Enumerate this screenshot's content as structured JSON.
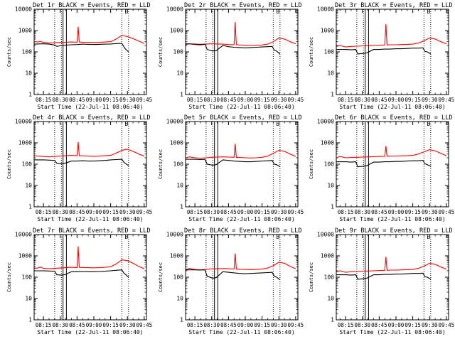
{
  "chart_data": {
    "type": "line",
    "shared": {
      "xlabel": "Start Time (22-Jul-11 08:06:40)",
      "ylabel": "Counts/sec",
      "x_ticks": [
        "08:15",
        "08:30",
        "08:45",
        "09:00",
        "09:15",
        "09:30",
        "09:45"
      ],
      "x_tick_minutes": [
        15,
        30,
        45,
        60,
        75,
        90,
        105
      ],
      "xlim_minutes": [
        6.67,
        107
      ],
      "y_scale": "log",
      "ylim": [
        1,
        10000
      ],
      "y_ticks": [
        "1",
        "10",
        "100",
        "1000",
        "10000"
      ],
      "y_tick_values": [
        1,
        10,
        100,
        1000,
        10000
      ],
      "dotted_vlines_minutes": [
        25,
        31,
        85,
        91
      ],
      "box_minutes": [
        32.5,
        35.5
      ],
      "corner_marker": "E",
      "corner_marker_minute": 89,
      "series_colors": {
        "events": "#000000",
        "lld": "#ff0000"
      }
    },
    "panels": [
      {
        "title": "Det 1r  BLACK = Events, RED = LLD",
        "events": {
          "x": [
            7,
            15,
            20,
            25,
            27,
            31,
            34,
            40,
            45,
            50,
            55,
            60,
            65,
            70,
            75,
            80,
            85,
            87,
            88,
            91
          ],
          "y": [
            230,
            240,
            230,
            210,
            180,
            200,
            205,
            215,
            220,
            230,
            225,
            220,
            225,
            230,
            235,
            245,
            250,
            170,
            140,
            100
          ]
        },
        "lld": {
          "x": [
            7,
            10,
            12,
            15,
            20,
            25,
            30,
            35,
            40,
            45,
            46,
            47,
            50,
            55,
            60,
            65,
            70,
            75,
            80,
            85,
            90,
            95,
            100,
            105
          ],
          "y": [
            300,
            290,
            310,
            280,
            260,
            270,
            275,
            285,
            290,
            285,
            1500,
            290,
            285,
            280,
            275,
            280,
            290,
            300,
            400,
            600,
            520,
            420,
            320,
            250
          ]
        }
      },
      {
        "title": "Det 2r  BLACK = Events, RED = LLD",
        "events": {
          "x": [
            7,
            15,
            20,
            24,
            26,
            31,
            34,
            40,
            45,
            50,
            55,
            60,
            65,
            70,
            75,
            80,
            84,
            86,
            88,
            91
          ],
          "y": [
            240,
            230,
            225,
            230,
            130,
            110,
            115,
            200,
            175,
            165,
            160,
            155,
            160,
            165,
            170,
            175,
            180,
            120,
            110,
            80
          ]
        },
        "lld": {
          "x": [
            7,
            10,
            15,
            20,
            25,
            30,
            35,
            40,
            45,
            50,
            51,
            52,
            55,
            60,
            65,
            70,
            75,
            80,
            85,
            90,
            95,
            100,
            105
          ],
          "y": [
            220,
            240,
            220,
            210,
            230,
            240,
            235,
            230,
            220,
            215,
            2500,
            215,
            210,
            205,
            200,
            205,
            210,
            230,
            300,
            450,
            400,
            300,
            240
          ]
        }
      },
      {
        "title": "Det 3r  BLACK = Events, RED = LLD",
        "events": {
          "x": [
            7,
            15,
            20,
            24,
            26,
            31,
            34,
            40,
            45,
            50,
            55,
            60,
            65,
            70,
            75,
            80,
            84,
            86,
            88,
            91
          ],
          "y": [
            130,
            130,
            125,
            130,
            80,
            85,
            90,
            130,
            130,
            135,
            135,
            140,
            140,
            145,
            150,
            150,
            155,
            105,
            100,
            80
          ]
        },
        "lld": {
          "x": [
            7,
            10,
            15,
            20,
            25,
            30,
            35,
            40,
            45,
            50,
            51,
            52,
            55,
            60,
            65,
            70,
            75,
            80,
            85,
            90,
            95,
            100,
            105
          ],
          "y": [
            180,
            200,
            170,
            180,
            185,
            190,
            195,
            200,
            205,
            210,
            2000,
            210,
            215,
            215,
            220,
            225,
            230,
            260,
            330,
            450,
            400,
            300,
            240
          ]
        }
      },
      {
        "title": "Det 4r  BLACK = Events, RED = LLD",
        "events": {
          "x": [
            7,
            15,
            20,
            25,
            27,
            31,
            34,
            40,
            45,
            50,
            55,
            60,
            65,
            70,
            75,
            80,
            85,
            87,
            88,
            91
          ],
          "y": [
            160,
            160,
            155,
            150,
            110,
            105,
            110,
            140,
            140,
            145,
            140,
            140,
            145,
            150,
            160,
            165,
            170,
            120,
            110,
            85
          ]
        },
        "lld": {
          "x": [
            7,
            10,
            15,
            20,
            25,
            30,
            35,
            40,
            45,
            46,
            47,
            50,
            55,
            60,
            65,
            70,
            75,
            80,
            85,
            90,
            95,
            100,
            105
          ],
          "y": [
            250,
            240,
            230,
            220,
            230,
            240,
            250,
            260,
            250,
            1100,
            250,
            245,
            240,
            235,
            240,
            250,
            260,
            330,
            450,
            500,
            400,
            300,
            240
          ]
        }
      },
      {
        "title": "Det 5r  BLACK = Events, RED = LLD",
        "events": {
          "x": [
            7,
            15,
            20,
            24,
            26,
            31,
            34,
            40,
            45,
            50,
            55,
            60,
            65,
            70,
            75,
            80,
            84,
            86,
            88,
            91
          ],
          "y": [
            170,
            170,
            165,
            170,
            100,
            90,
            95,
            160,
            150,
            140,
            135,
            130,
            130,
            135,
            140,
            145,
            150,
            100,
            95,
            75
          ]
        },
        "lld": {
          "x": [
            7,
            10,
            15,
            20,
            25,
            30,
            35,
            40,
            45,
            50,
            51,
            52,
            55,
            60,
            65,
            70,
            75,
            80,
            85,
            90,
            95,
            100,
            105
          ],
          "y": [
            200,
            220,
            200,
            190,
            200,
            210,
            215,
            220,
            215,
            210,
            900,
            210,
            205,
            200,
            195,
            200,
            210,
            240,
            320,
            450,
            400,
            300,
            230
          ]
        }
      },
      {
        "title": "Det 6r  BLACK = Events, RED = LLD",
        "events": {
          "x": [
            7,
            15,
            20,
            24,
            26,
            31,
            34,
            40,
            45,
            50,
            55,
            60,
            65,
            70,
            75,
            80,
            84,
            86,
            88,
            91
          ],
          "y": [
            130,
            130,
            125,
            130,
            75,
            80,
            85,
            125,
            125,
            130,
            130,
            135,
            135,
            140,
            145,
            145,
            150,
            105,
            95,
            80
          ]
        },
        "lld": {
          "x": [
            7,
            10,
            15,
            20,
            25,
            30,
            35,
            40,
            45,
            50,
            51,
            52,
            55,
            60,
            65,
            70,
            75,
            80,
            85,
            90,
            95,
            100,
            105
          ],
          "y": [
            200,
            230,
            200,
            205,
            210,
            215,
            220,
            225,
            230,
            235,
            700,
            235,
            240,
            240,
            245,
            250,
            260,
            300,
            380,
            480,
            420,
            320,
            250
          ]
        }
      },
      {
        "title": "Det 7r  BLACK = Events, RED = LLD",
        "events": {
          "x": [
            7,
            15,
            20,
            25,
            27,
            31,
            34,
            40,
            45,
            50,
            55,
            60,
            65,
            70,
            75,
            80,
            85,
            87,
            88,
            91
          ],
          "y": [
            200,
            200,
            195,
            190,
            130,
            125,
            130,
            180,
            180,
            185,
            180,
            180,
            185,
            190,
            200,
            210,
            220,
            150,
            140,
            100
          ]
        },
        "lld": {
          "x": [
            7,
            10,
            12,
            15,
            20,
            25,
            30,
            35,
            40,
            45,
            46,
            47,
            50,
            55,
            60,
            65,
            70,
            75,
            80,
            85,
            90,
            95,
            100,
            105
          ],
          "y": [
            260,
            270,
            300,
            260,
            250,
            260,
            270,
            280,
            290,
            280,
            2800,
            290,
            285,
            280,
            275,
            280,
            290,
            310,
            420,
            650,
            600,
            450,
            320,
            250
          ]
        }
      },
      {
        "title": "Det 8r  BLACK = Events, RED = LLD",
        "events": {
          "x": [
            7,
            15,
            20,
            24,
            26,
            31,
            34,
            40,
            45,
            50,
            55,
            60,
            65,
            70,
            75,
            80,
            84,
            86,
            88,
            91
          ],
          "y": [
            220,
            220,
            215,
            220,
            110,
            90,
            95,
            180,
            170,
            160,
            150,
            145,
            150,
            155,
            160,
            165,
            170,
            110,
            100,
            75
          ]
        },
        "lld": {
          "x": [
            7,
            10,
            15,
            20,
            25,
            30,
            35,
            40,
            45,
            50,
            51,
            52,
            55,
            60,
            65,
            70,
            75,
            80,
            85,
            90,
            95,
            100,
            105
          ],
          "y": [
            230,
            260,
            230,
            220,
            235,
            245,
            250,
            255,
            250,
            240,
            1300,
            240,
            235,
            230,
            225,
            230,
            240,
            270,
            350,
            500,
            450,
            320,
            250
          ]
        }
      },
      {
        "title": "Det 9r  BLACK = Events, RED = LLD",
        "events": {
          "x": [
            7,
            15,
            20,
            24,
            26,
            31,
            34,
            40,
            45,
            50,
            55,
            60,
            65,
            70,
            75,
            80,
            84,
            86,
            88,
            91
          ],
          "y": [
            130,
            130,
            125,
            130,
            80,
            85,
            90,
            130,
            130,
            135,
            135,
            140,
            140,
            145,
            150,
            150,
            155,
            105,
            100,
            80
          ]
        },
        "lld": {
          "x": [
            7,
            10,
            15,
            20,
            25,
            30,
            35,
            40,
            45,
            50,
            51,
            52,
            55,
            60,
            65,
            70,
            75,
            80,
            85,
            90,
            95,
            100,
            105
          ],
          "y": [
            180,
            200,
            170,
            180,
            185,
            190,
            195,
            200,
            205,
            210,
            900,
            210,
            215,
            215,
            220,
            225,
            230,
            260,
            330,
            450,
            400,
            300,
            240
          ]
        }
      }
    ]
  }
}
